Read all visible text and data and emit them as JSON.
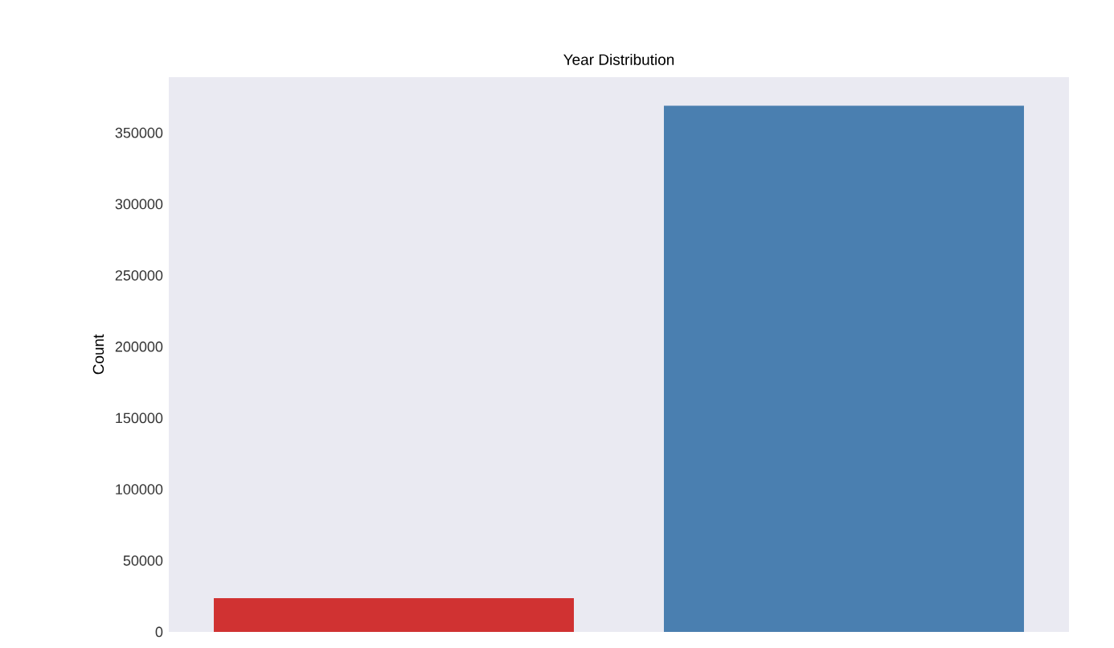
{
  "chart_data": {
    "type": "bar",
    "title": "Year Distribution",
    "ylabel": "Count",
    "categories": [
      null,
      null
    ],
    "values": [
      23700,
      369000
    ],
    "colors": [
      "#d03232",
      "#4a7fb0"
    ],
    "ylim": [
      0,
      389000
    ],
    "yticks": [
      0,
      50000,
      100000,
      150000,
      200000,
      250000,
      300000,
      350000
    ]
  }
}
